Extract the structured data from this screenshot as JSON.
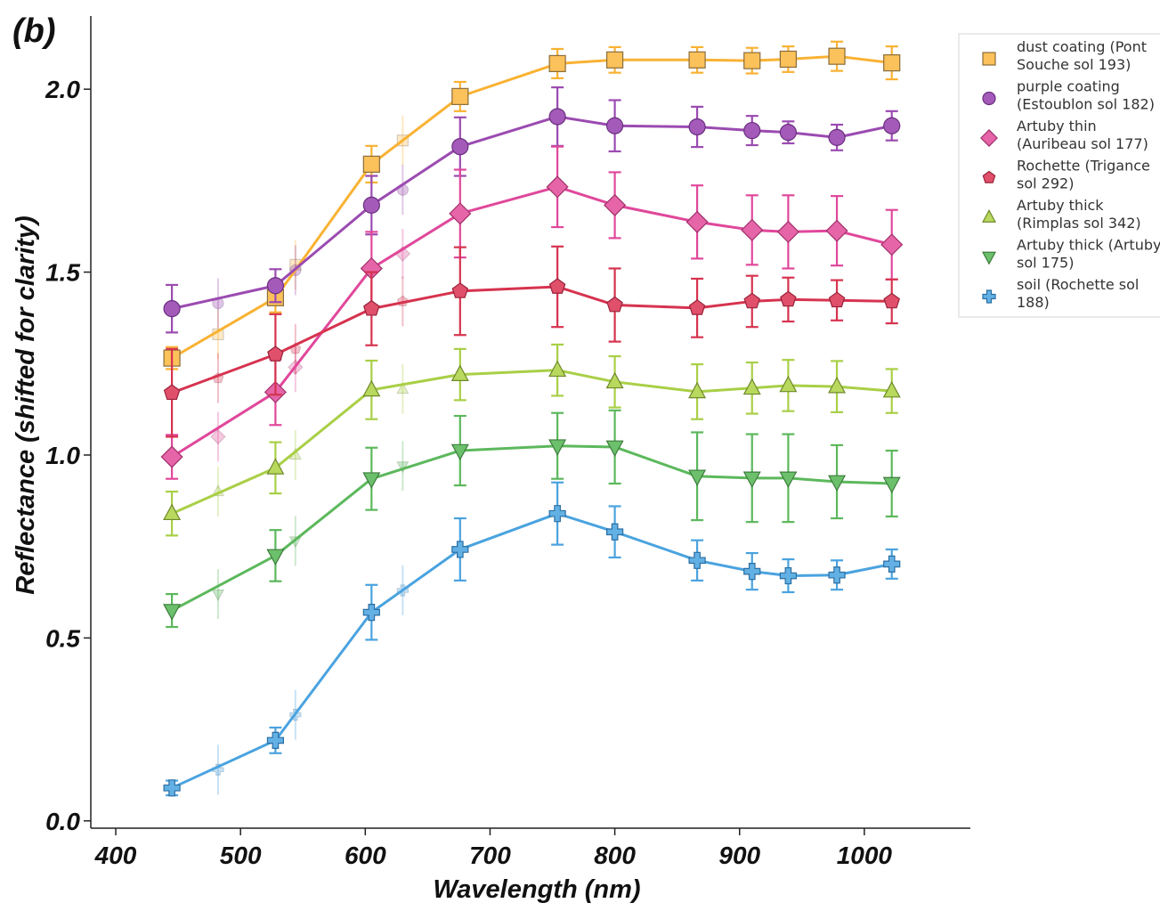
{
  "panel_label": "(b)",
  "chart_data": {
    "type": "line",
    "title": "",
    "xlabel": "Wavelength (nm)",
    "ylabel": "Reflectance (shifted for clarity)",
    "xlim": [
      380,
      1085
    ],
    "ylim": [
      -0.02,
      2.2
    ],
    "xticks": [
      400,
      500,
      600,
      700,
      800,
      900,
      1000
    ],
    "xtick_labels": [
      "400",
      "500",
      "600",
      "700",
      "800",
      "900",
      "1000"
    ],
    "yticks": [
      0.0,
      0.5,
      1.0,
      1.5,
      2.0
    ],
    "ytick_labels": [
      "0.0",
      "0.5",
      "1.0",
      "1.5",
      "2.0"
    ],
    "grid": false,
    "legend_position": "top-right",
    "x": [
      445,
      528,
      605,
      676,
      754,
      800,
      866,
      910,
      939,
      978,
      1022
    ],
    "faded_x": [
      482,
      544,
      630
    ],
    "series": [
      {
        "name": "dust coating (Pont Souche sol 193)",
        "legend_lines": [
          "dust coating (Pont",
          "Souche sol 193)"
        ],
        "color": "#f9b233",
        "fill": "#fbc15a",
        "edge": "#8a6d3b",
        "marker": "square",
        "values": [
          1.265,
          1.43,
          1.795,
          1.98,
          2.07,
          2.08,
          2.08,
          2.078,
          2.082,
          2.09,
          2.072
        ],
        "errors": [
          0.03,
          0.04,
          0.05,
          0.04,
          0.04,
          0.035,
          0.035,
          0.035,
          0.035,
          0.04,
          0.045
        ],
        "faded_values": [
          1.33,
          1.52,
          1.86
        ]
      },
      {
        "name": "purple coating (Estoublon sol 182)",
        "legend_lines": [
          "purple coating",
          "(Estoublon sol 182)"
        ],
        "color": "#9b4bb1",
        "fill": "#a45ab8",
        "edge": "#6a2f80",
        "marker": "circle",
        "values": [
          1.4,
          1.463,
          1.683,
          1.843,
          1.925,
          1.9,
          1.897,
          1.887,
          1.882,
          1.868,
          1.9
        ],
        "errors": [
          0.065,
          0.045,
          0.08,
          0.08,
          0.08,
          0.07,
          0.055,
          0.04,
          0.03,
          0.035,
          0.04
        ],
        "faded_values": [
          1.415,
          1.505,
          1.725
        ]
      },
      {
        "name": "Artuby thin (Auribeau sol 177)",
        "legend_lines": [
          "Artuby thin",
          "(Auribeau sol 177)"
        ],
        "color": "#e0489b",
        "fill": "#e565a8",
        "edge": "#a0306a",
        "marker": "diamond",
        "values": [
          0.995,
          1.172,
          1.51,
          1.66,
          1.733,
          1.683,
          1.637,
          1.615,
          1.61,
          1.613,
          1.575
        ],
        "errors": [
          0.06,
          0.09,
          0.1,
          0.12,
          0.11,
          0.09,
          0.1,
          0.095,
          0.1,
          0.095,
          0.095
        ],
        "faded_values": [
          1.05,
          1.24,
          1.55
        ]
      },
      {
        "name": "Rochette (Trigance sol 292)",
        "legend_lines": [
          "Rochette (Trigance",
          "sol 292)"
        ],
        "color": "#d6334f",
        "fill": "#e0506a",
        "edge": "#99223a",
        "marker": "pentagon",
        "values": [
          1.17,
          1.275,
          1.4,
          1.448,
          1.46,
          1.41,
          1.402,
          1.42,
          1.425,
          1.423,
          1.42
        ],
        "errors": [
          0.12,
          0.11,
          0.1,
          0.12,
          0.11,
          0.1,
          0.08,
          0.07,
          0.06,
          0.055,
          0.06
        ],
        "faded_values": [
          1.21,
          1.29,
          1.42
        ]
      },
      {
        "name": "Artuby thick (Rimplas sol 342)",
        "legend_lines": [
          "Artuby thick",
          "(Rimplas sol 342)"
        ],
        "color": "#a9cf46",
        "fill": "#b8d85e",
        "edge": "#6f8a2a",
        "marker": "triangle-up",
        "values": [
          0.84,
          0.965,
          1.178,
          1.22,
          1.232,
          1.2,
          1.173,
          1.183,
          1.19,
          1.187,
          1.175
        ],
        "errors": [
          0.06,
          0.07,
          0.08,
          0.07,
          0.07,
          0.07,
          0.075,
          0.07,
          0.07,
          0.07,
          0.06
        ],
        "faded_values": [
          0.9,
          1.0,
          1.18
        ]
      },
      {
        "name": "Artuby thick (Artuby sol 175)",
        "legend_lines": [
          "Artuby thick (Artuby",
          "sol 175)"
        ],
        "color": "#5cb85c",
        "fill": "#6cc06c",
        "edge": "#3d7d3d",
        "marker": "triangle-down",
        "values": [
          0.575,
          0.725,
          0.935,
          1.012,
          1.025,
          1.022,
          0.942,
          0.937,
          0.937,
          0.927,
          0.922
        ],
        "errors": [
          0.045,
          0.07,
          0.085,
          0.095,
          0.09,
          0.1,
          0.12,
          0.12,
          0.12,
          0.1,
          0.09
        ],
        "faded_values": [
          0.62,
          0.765,
          0.97
        ]
      },
      {
        "name": "soil (Rochette sol 188)",
        "legend_lines": [
          "soil (Rochette sol",
          "188)"
        ],
        "color": "#4aa3df",
        "fill": "#62b0e4",
        "edge": "#2b6fa3",
        "marker": "plus",
        "values": [
          0.09,
          0.22,
          0.57,
          0.742,
          0.84,
          0.79,
          0.712,
          0.682,
          0.67,
          0.672,
          0.702
        ],
        "errors": [
          0.02,
          0.035,
          0.075,
          0.085,
          0.085,
          0.07,
          0.055,
          0.05,
          0.045,
          0.04,
          0.04
        ],
        "faded_values": [
          0.14,
          0.29,
          0.63
        ]
      }
    ]
  }
}
